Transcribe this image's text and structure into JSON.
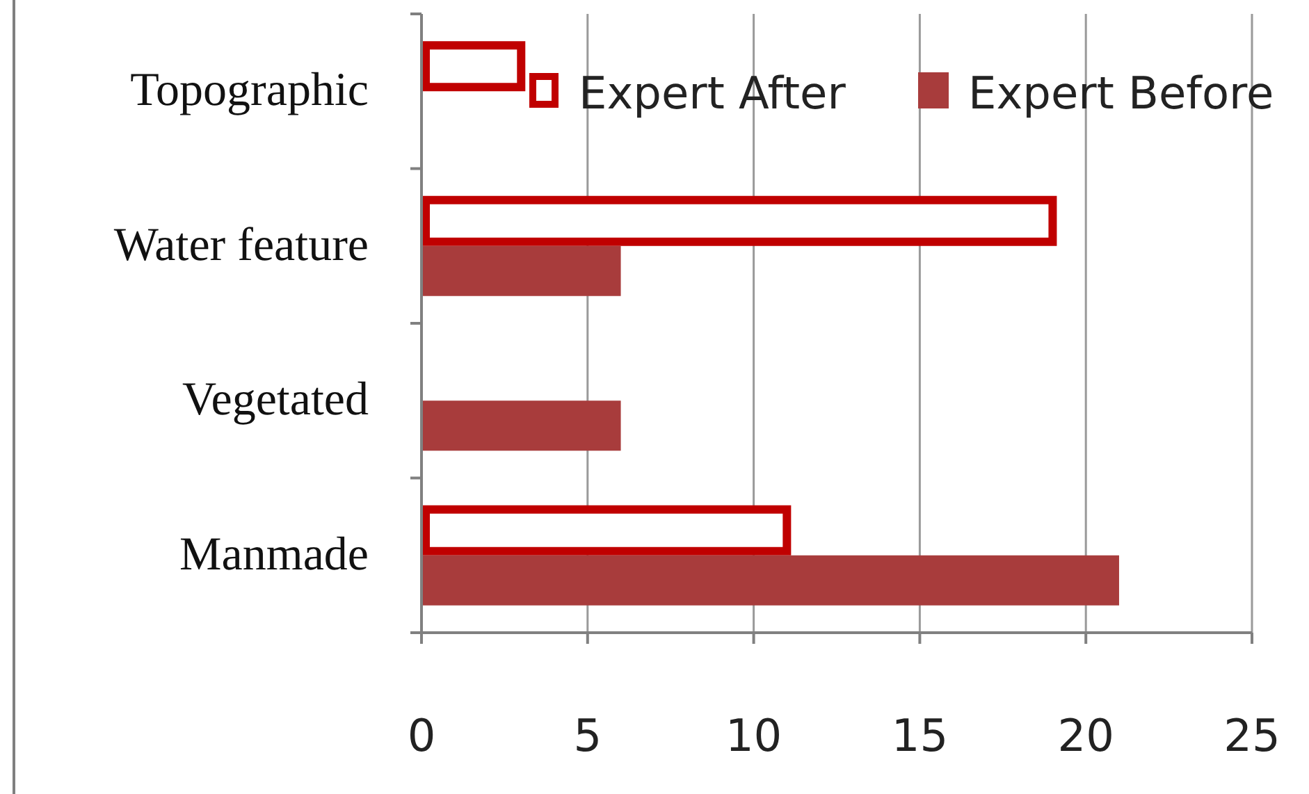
{
  "chart_data": {
    "type": "bar",
    "orientation": "horizontal",
    "categories": [
      "Topographic",
      "Water feature",
      "Vegetated",
      "Manmade"
    ],
    "series": [
      {
        "name": "Expert After",
        "color": "#c00000",
        "values": [
          3,
          19,
          null,
          11
        ]
      },
      {
        "name": "Expert Before",
        "color": "#a83c3c",
        "values": [
          null,
          6,
          6,
          21
        ]
      }
    ],
    "xlim": [
      0,
      25
    ],
    "xticks": [
      0,
      5,
      10,
      15,
      20,
      25
    ],
    "grid": "x",
    "legend": "top right"
  }
}
